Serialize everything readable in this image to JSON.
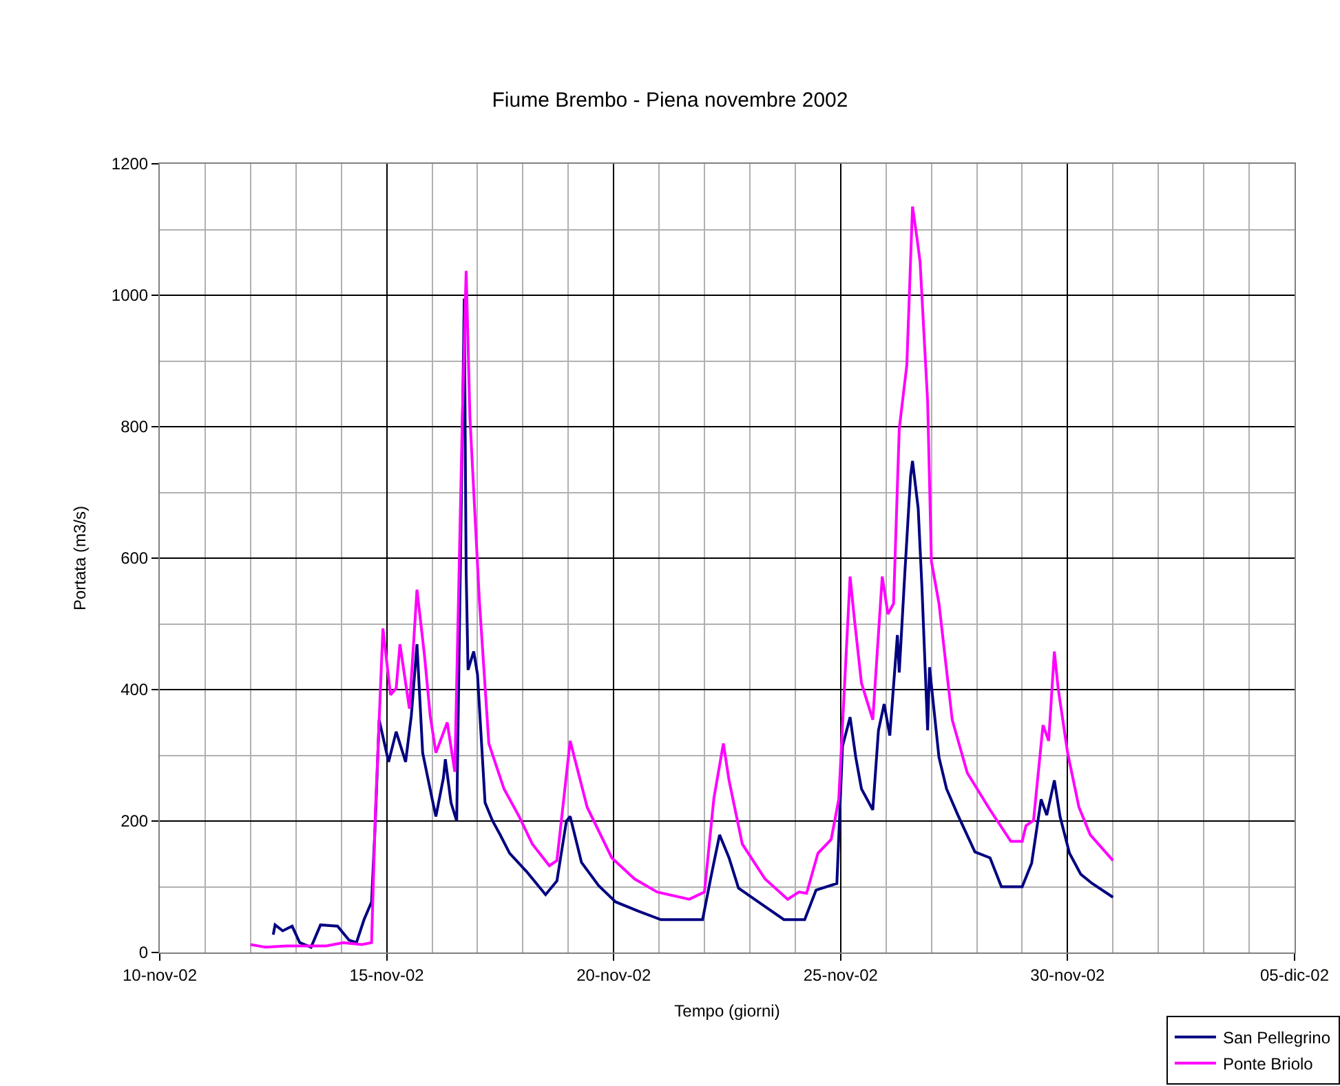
{
  "chart_data": {
    "type": "line",
    "title": "Fiume Brembo - Piena novembre 2002",
    "xlabel": "Tempo (giorni)",
    "ylabel": "Portata (m3/s)",
    "xlim": [
      "2002-11-10",
      "2002-12-05"
    ],
    "xticks": [
      {
        "value": "2002-11-10",
        "label": "10-nov-02"
      },
      {
        "value": "2002-11-15",
        "label": "15-nov-02"
      },
      {
        "value": "2002-11-20",
        "label": "20-nov-02"
      },
      {
        "value": "2002-11-25",
        "label": "25-nov-02"
      },
      {
        "value": "2002-11-30",
        "label": "30-nov-02"
      },
      {
        "value": "2002-12-05",
        "label": "05-dic-02"
      }
    ],
    "ylim": [
      0,
      1200
    ],
    "yticks": [
      0,
      200,
      400,
      600,
      800,
      1000,
      1200
    ],
    "grid": true,
    "legend": "bottom right",
    "series": [
      {
        "name": "San Pellegrino",
        "color": "#000080",
        "x": [
          "2002-11-12T12:00",
          "2002-11-12T13:00",
          "2002-11-12T17:00",
          "2002-11-12T22:00",
          "2002-11-13T02:00",
          "2002-11-13T08:00",
          "2002-11-13T13:00",
          "2002-11-13T22:00",
          "2002-11-14T04:00",
          "2002-11-14T08:00",
          "2002-11-14T12:00",
          "2002-11-14T16:00",
          "2002-11-14T18:00",
          "2002-11-14T20:00",
          "2002-11-15T01:00",
          "2002-11-15T05:00",
          "2002-11-15T10:00",
          "2002-11-15T13:00",
          "2002-11-15T16:00",
          "2002-11-15T19:00",
          "2002-11-16T00:00",
          "2002-11-16T02:00",
          "2002-11-16T06:00",
          "2002-11-16T07:00",
          "2002-11-16T10:00",
          "2002-11-16T13:00",
          "2002-11-16T17:00",
          "2002-11-16T18:00",
          "2002-11-16T19:00",
          "2002-11-16T22:00",
          "2002-11-17T00:00",
          "2002-11-17T04:00",
          "2002-11-17T08:00",
          "2002-11-17T12:00",
          "2002-11-17T17:00",
          "2002-11-18T02:00",
          "2002-11-18T12:00",
          "2002-11-18T18:00",
          "2002-11-18T23:00",
          "2002-11-19T01:00",
          "2002-11-19T07:00",
          "2002-11-19T16:00",
          "2002-11-20T01:00",
          "2002-11-20T13:00",
          "2002-11-21T01:00",
          "2002-11-21T23:00",
          "2002-11-22T04:00",
          "2002-11-22T08:00",
          "2002-11-22T13:00",
          "2002-11-22T18:00",
          "2002-11-23T06:00",
          "2002-11-23T18:00",
          "2002-11-24T05:00",
          "2002-11-24T11:00",
          "2002-11-24T22:00",
          "2002-11-25T01:00",
          "2002-11-25T05:00",
          "2002-11-25T08:00",
          "2002-11-25T11:00",
          "2002-11-25T17:00",
          "2002-11-25T20:00",
          "2002-11-25T23:00",
          "2002-11-26T02:00",
          "2002-11-26T06:00",
          "2002-11-26T07:00",
          "2002-11-26T10:00",
          "2002-11-26T13:00",
          "2002-11-26T14:00",
          "2002-11-26T17:00",
          "2002-11-26T19:00",
          "2002-11-26T22:00",
          "2002-11-26T23:00",
          "2002-11-27T04:00",
          "2002-11-27T08:00",
          "2002-11-27T14:00",
          "2002-11-27T23:00",
          "2002-11-28T07:00",
          "2002-11-28T13:00",
          "2002-11-29T00:00",
          "2002-11-29T05:00",
          "2002-11-29T10:00",
          "2002-11-29T13:00",
          "2002-11-29T17:00",
          "2002-11-29T20:00",
          "2002-11-30T01:00",
          "2002-11-30T07:00",
          "2002-11-30T13:00",
          "2002-12-01T00:00"
        ],
        "values": [
          27,
          42,
          33,
          40,
          15,
          8,
          42,
          40,
          19,
          15,
          50,
          77,
          200,
          354,
          290,
          336,
          290,
          360,
          469,
          304,
          234,
          207,
          266,
          294,
          228,
          200,
          995,
          580,
          430,
          458,
          423,
          228,
          200,
          179,
          151,
          123,
          88,
          109,
          200,
          207,
          137,
          102,
          77,
          63,
          50,
          50,
          123,
          179,
          144,
          98,
          74,
          50,
          50,
          95,
          105,
          314,
          358,
          297,
          249,
          217,
          338,
          378,
          330,
          483,
          426,
          580,
          725,
          748,
          676,
          555,
          338,
          434,
          297,
          249,
          209,
          153,
          144,
          100,
          100,
          136,
          233,
          209,
          262,
          207,
          151,
          119,
          105,
          84
        ]
      },
      {
        "name": "Ponte Briolo",
        "color": "#ff00ff",
        "x": [
          "2002-11-12T00:00",
          "2002-11-12T08:00",
          "2002-11-12T19:00",
          "2002-11-13T16:00",
          "2002-11-14T01:00",
          "2002-11-14T11:00",
          "2002-11-14T16:00",
          "2002-11-14T18:00",
          "2002-11-14T22:00",
          "2002-11-15T02:00",
          "2002-11-15T05:00",
          "2002-11-15T07:00",
          "2002-11-15T12:00",
          "2002-11-15T16:00",
          "2002-11-15T20:00",
          "2002-11-15T23:00",
          "2002-11-16T02:00",
          "2002-11-16T08:00",
          "2002-11-16T12:00",
          "2002-11-16T16:00",
          "2002-11-16T18:00",
          "2002-11-16T20:00",
          "2002-11-17T01:00",
          "2002-11-17T06:00",
          "2002-11-17T14:00",
          "2002-11-17T22:00",
          "2002-11-18T05:00",
          "2002-11-18T14:00",
          "2002-11-18T18:00",
          "2002-11-19T01:00",
          "2002-11-19T10:00",
          "2002-11-19T23:00",
          "2002-11-20T11:00",
          "2002-11-20T23:00",
          "2002-11-21T16:00",
          "2002-11-22T00:00",
          "2002-11-22T05:00",
          "2002-11-22T10:00",
          "2002-11-22T13:00",
          "2002-11-22T20:00",
          "2002-11-23T08:00",
          "2002-11-23T20:00",
          "2002-11-24T02:00",
          "2002-11-24T06:00",
          "2002-11-24T12:00",
          "2002-11-24T19:00",
          "2002-11-24T23:00",
          "2002-11-25T05:00",
          "2002-11-25T07:00",
          "2002-11-25T11:00",
          "2002-11-25T17:00",
          "2002-11-25T22:00",
          "2002-11-26T01:00",
          "2002-11-26T04:00",
          "2002-11-26T07:00",
          "2002-11-26T11:00",
          "2002-11-26T14:00",
          "2002-11-26T16:00",
          "2002-11-26T18:00",
          "2002-11-26T22:00",
          "2002-11-27T00:00",
          "2002-11-27T04:00",
          "2002-11-27T11:00",
          "2002-11-27T19:00",
          "2002-11-28T07:00",
          "2002-11-28T18:00",
          "2002-11-29T00:00",
          "2002-11-29T02:00",
          "2002-11-29T06:00",
          "2002-11-29T11:00",
          "2002-11-29T14:00",
          "2002-11-29T17:00",
          "2002-11-29T19:00",
          "2002-11-30T00:00",
          "2002-11-30T06:00",
          "2002-11-30T12:00",
          "2002-12-01T00:00"
        ],
        "values": [
          12,
          8,
          10,
          10,
          15,
          12,
          15,
          213,
          493,
          392,
          402,
          469,
          371,
          552,
          451,
          360,
          304,
          350,
          275,
          814,
          1037,
          814,
          535,
          318,
          249,
          207,
          165,
          132,
          140,
          322,
          221,
          144,
          112,
          92,
          81,
          92,
          235,
          318,
          262,
          165,
          112,
          81,
          92,
          90,
          151,
          172,
          233,
          572,
          515,
          410,
          354,
          572,
          515,
          531,
          797,
          894,
          1135,
          1095,
          1051,
          838,
          595,
          531,
          354,
          273,
          217,
          169,
          169,
          193,
          201,
          346,
          322,
          458,
          402,
          304,
          221,
          179,
          140
        ]
      }
    ]
  }
}
